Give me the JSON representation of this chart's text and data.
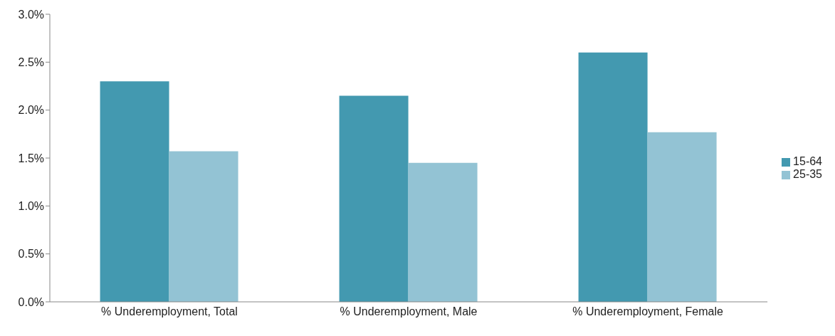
{
  "chart_data": {
    "type": "bar",
    "categories": [
      "% Underemployment, Total",
      "% Underemployment, Male",
      "% Underemployment, Female"
    ],
    "series": [
      {
        "name": "15-64",
        "color": "#4399b0",
        "values": [
          2.3,
          2.15,
          2.6
        ]
      },
      {
        "name": "25-35",
        "color": "#93c3d4",
        "values": [
          1.57,
          1.45,
          1.77
        ]
      }
    ],
    "ylim": [
      0,
      3
    ],
    "yticks": [
      {
        "value": 0,
        "label": "0.0%"
      },
      {
        "value": 0.5,
        "label": "0.5%"
      },
      {
        "value": 1,
        "label": "1.0%"
      },
      {
        "value": 1.5,
        "label": "1.5%"
      },
      {
        "value": 2,
        "label": "2.0%"
      },
      {
        "value": 2.5,
        "label": "2.5%"
      },
      {
        "value": 3,
        "label": "3.0%"
      }
    ],
    "grid": false,
    "legend": "right"
  }
}
